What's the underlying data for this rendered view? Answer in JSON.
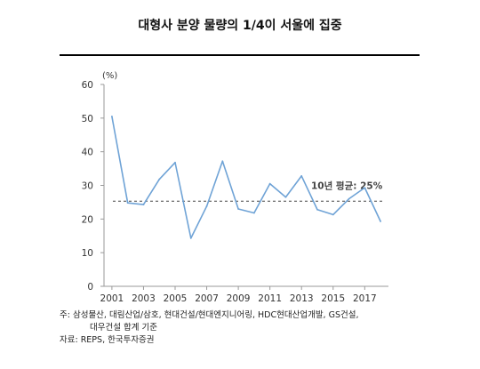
{
  "header": {
    "title": "대형사 분양 물량의 1/4이 서울에 집중"
  },
  "chart_data": {
    "type": "line",
    "title": "대형사 분양 물량의 1/4이 서울에 집중",
    "unit_label": "(%)",
    "xlabel": "",
    "ylabel": "",
    "x": [
      2001,
      2002,
      2003,
      2004,
      2005,
      2006,
      2007,
      2008,
      2009,
      2010,
      2011,
      2012,
      2013,
      2014,
      2015,
      2016,
      2017,
      2018
    ],
    "x_tick_labels": [
      "2001",
      "2003",
      "2005",
      "2007",
      "2009",
      "2011",
      "2013",
      "2015",
      "2017"
    ],
    "x_ticks": [
      2001,
      2003,
      2005,
      2007,
      2009,
      2011,
      2013,
      2015,
      2017
    ],
    "y_tick_labels": [
      "0",
      "10",
      "20",
      "30",
      "40",
      "50",
      "60"
    ],
    "ylim": [
      0,
      60
    ],
    "xlim": [
      2000.5,
      2018.5
    ],
    "series": [
      {
        "values": [
          50.5,
          24.8,
          24.3,
          31.8,
          36.8,
          14.3,
          23.8,
          37.2,
          23.0,
          21.8,
          30.5,
          26.5,
          32.8,
          22.8,
          21.3,
          26.0,
          29.3,
          19.3
        ],
        "color": "#6fa3d6"
      }
    ],
    "reference_line": {
      "label": "10년 평균: 25%",
      "value": 25.3,
      "style": "dashed",
      "color": "#444444"
    },
    "grid": false
  },
  "footnotes": {
    "note_line1": "주: 삼성물산, 대림산업/삼호, 현대건설/현대엔지니어링, HDC현대산업개발, GS건설,",
    "note_line2": "대우건설 합계 기준",
    "source": "자료: REPS, 한국투자증권"
  }
}
